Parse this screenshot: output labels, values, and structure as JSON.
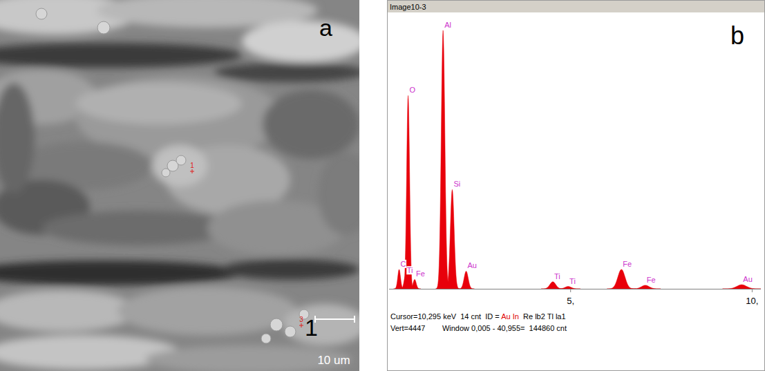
{
  "panel_a": {
    "letter": "a",
    "point_label": "1",
    "spot_labels": [
      "1",
      "3"
    ],
    "scale_bar": "10 um"
  },
  "panel_b": {
    "letter": "b",
    "window_title": "Image10-3",
    "cursor_line": [
      "Cursor=10,295 keV  14 cnt  ID = ",
      "Au In",
      "  Re lb2 Tl la1"
    ],
    "status_line": "Vert=4447        Window 0,005 - 40,955=  144860 cnt"
  },
  "chart_data": {
    "type": "spectrum",
    "color": "#e8000b",
    "xlim": [
      0,
      10.24
    ],
    "xticks": [
      {
        "value": 5,
        "label": "5,"
      },
      {
        "value": 10,
        "label": "10,"
      }
    ],
    "ylim": [
      0,
      4447
    ],
    "tick_labels": "x",
    "peaks": [
      {
        "label": "C",
        "energy": 0.277,
        "counts": 330
      },
      {
        "label": "Ti",
        "energy": 0.452,
        "counts": 220
      },
      {
        "label": "O",
        "energy": 0.525,
        "counts": 3290
      },
      {
        "label": "Fe",
        "energy": 0.705,
        "counts": 160
      },
      {
        "label": "Al",
        "energy": 1.487,
        "counts": 4400
      },
      {
        "label": "Si",
        "energy": 1.74,
        "counts": 1690
      },
      {
        "label": "Au",
        "energy": 2.123,
        "counts": 300
      },
      {
        "label": "Ti",
        "energy": 4.51,
        "counts": 120
      },
      {
        "label": "Ti",
        "energy": 4.932,
        "counts": 40
      },
      {
        "label": "Fe",
        "energy": 6.4,
        "counts": 330
      },
      {
        "label": "Fe",
        "energy": 7.058,
        "counts": 60
      },
      {
        "label": "Au",
        "energy": 9.713,
        "counts": 70
      }
    ]
  }
}
